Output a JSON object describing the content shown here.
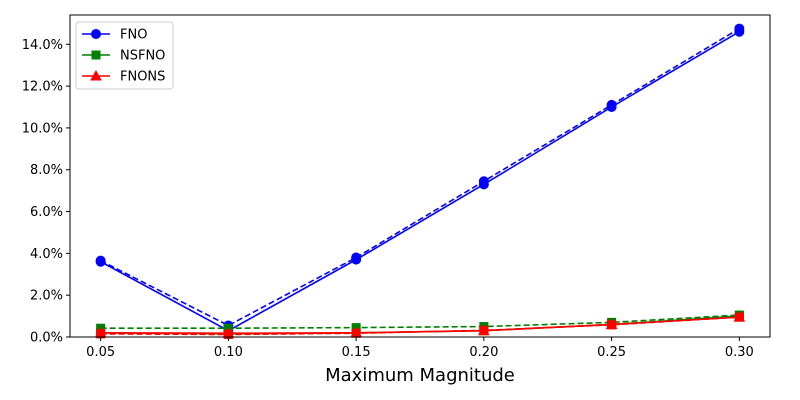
{
  "chart_data": {
    "type": "line",
    "title": "",
    "xlabel": "Maximum Magnitude",
    "ylabel": "",
    "x": [
      0.05,
      0.1,
      0.15,
      0.2,
      0.25,
      0.3
    ],
    "x_tick_labels": [
      "0.05",
      "0.10",
      "0.15",
      "0.20",
      "0.25",
      "0.30"
    ],
    "y_ticks": [
      0,
      2,
      4,
      6,
      8,
      10,
      12,
      14
    ],
    "y_tick_labels": [
      "0.0%",
      "2.0%",
      "4.0%",
      "6.0%",
      "8.0%",
      "10.0%",
      "12.0%",
      "14.0%"
    ],
    "y_unit": "%",
    "xlim": [
      0.038,
      0.312
    ],
    "ylim": [
      0,
      15.4
    ],
    "grid": false,
    "legend_position": "top-left",
    "series": [
      {
        "name": "FNO",
        "color": "#0000ff",
        "marker": "circle",
        "line_style": "solid",
        "values": [
          3.6,
          0.3,
          3.7,
          7.3,
          11.0,
          14.6
        ]
      },
      {
        "name": "",
        "color": "#0000ff",
        "marker": "circle",
        "line_style": "dashed",
        "values": [
          3.65,
          0.55,
          3.8,
          7.45,
          11.1,
          14.75
        ]
      },
      {
        "name": "NSFNO",
        "color": "#008000",
        "marker": "square",
        "line_style": "dashed",
        "values": [
          0.42,
          0.42,
          0.45,
          0.5,
          0.7,
          1.05
        ]
      },
      {
        "name": "",
        "color": "#008000",
        "marker": "square",
        "line_style": "solid",
        "values": [
          0.2,
          0.15,
          0.2,
          0.3,
          0.6,
          1.0
        ]
      },
      {
        "name": "FNONS",
        "color": "#ff0000",
        "marker": "triangle",
        "line_style": "solid",
        "values": [
          0.2,
          0.18,
          0.2,
          0.3,
          0.6,
          0.95
        ]
      },
      {
        "name": "",
        "color": "#ff0000",
        "marker": "square",
        "line_style": "dashed",
        "values": [
          0.15,
          0.12,
          0.18,
          0.32,
          0.58,
          0.95
        ]
      }
    ]
  }
}
